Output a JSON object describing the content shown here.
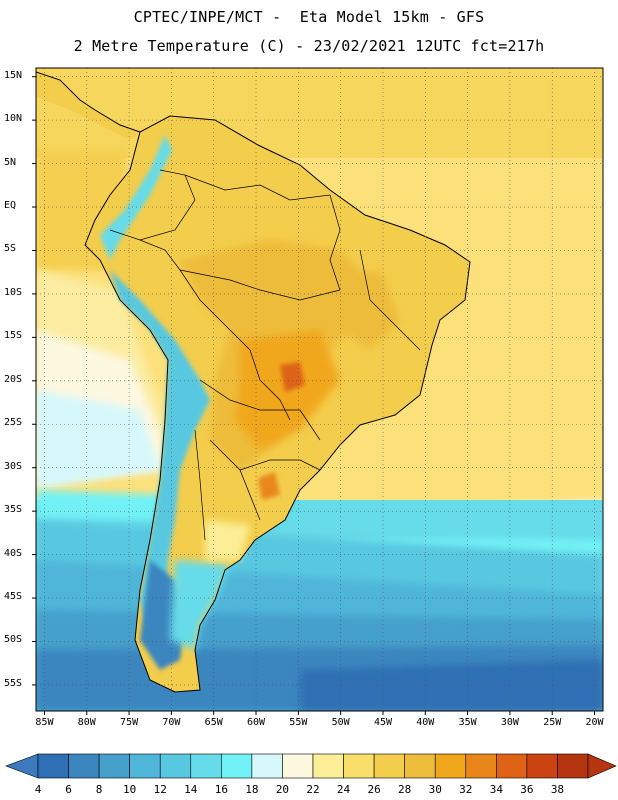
{
  "header": {
    "title_line1": "CPTEC/INPE/MCT -  Eta Model 15km - GFS",
    "title_line2": "2 Metre Temperature (C) - 23/02/2021 12UTC fct=217h"
  },
  "map": {
    "lat_labels": [
      "15N",
      "10N",
      "5N",
      "EQ",
      "5S",
      "10S",
      "15S",
      "20S",
      "25S",
      "30S",
      "35S",
      "40S",
      "45S",
      "50S",
      "55S"
    ],
    "lon_labels": [
      "85W",
      "80W",
      "75W",
      "70W",
      "65W",
      "60W",
      "55W",
      "50W",
      "45W",
      "40W",
      "35W",
      "30W",
      "25W",
      "20W"
    ],
    "lat_range": [
      -58,
      16
    ],
    "lon_range": [
      -86,
      -19
    ]
  },
  "colorbar": {
    "labels": [
      "4",
      "6",
      "8",
      "10",
      "12",
      "14",
      "16",
      "18",
      "20",
      "22",
      "24",
      "26",
      "28",
      "30",
      "32",
      "34",
      "36",
      "38"
    ],
    "colors": [
      "#2f6fb3",
      "#3b86bf",
      "#45a0cc",
      "#4fb6d9",
      "#58c8e0",
      "#66dbe9",
      "#72f2f6",
      "#d6f8fb",
      "#fdf8e0",
      "#fcee96",
      "#f8df6a",
      "#f3cd4c",
      "#eebc3b",
      "#f1a71c",
      "#e9871b",
      "#de6317",
      "#cc4312",
      "#b53510"
    ],
    "left_arrow_color": "#3a7abd",
    "right_arrow_color": "#b53510"
  }
}
